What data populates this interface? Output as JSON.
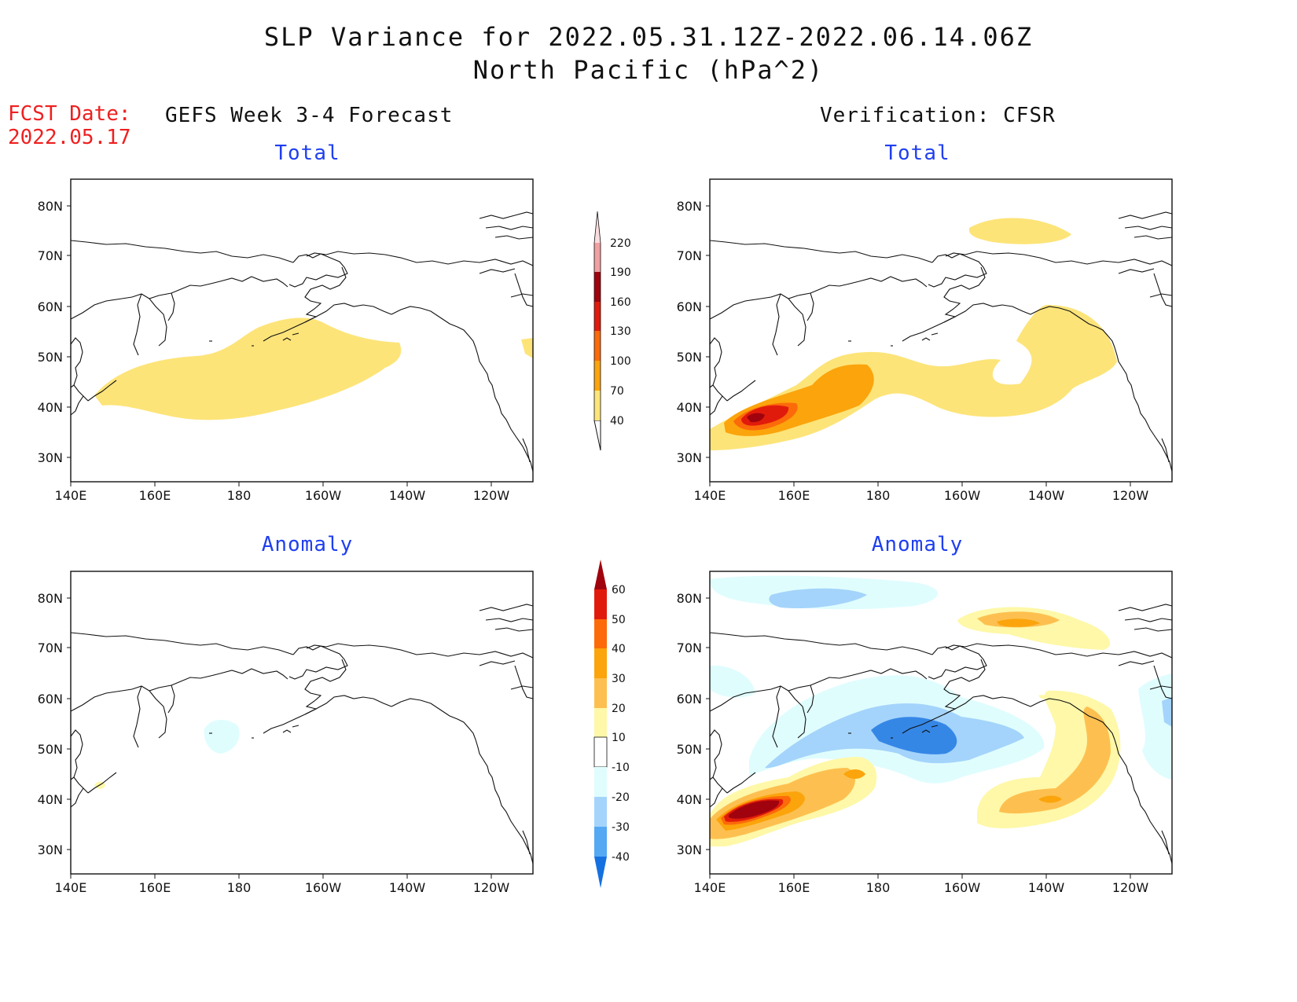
{
  "title": {
    "line1": "SLP Variance for 2022.05.31.12Z-2022.06.14.06Z",
    "line2": "North Pacific (hPa^2)"
  },
  "forecast_date": {
    "label": "FCST Date:",
    "value": "2022.05.17"
  },
  "column_titles": {
    "left": "GEFS Week 3-4 Forecast",
    "right": "Verification: CFSR"
  },
  "panel_labels": {
    "top_left": "Total",
    "top_right": "Total",
    "bottom_left": "Anomaly",
    "bottom_right": "Anomaly"
  },
  "axes": {
    "lat_labels": [
      "80N",
      "70N",
      "60N",
      "50N",
      "40N",
      "30N"
    ],
    "lon_labels": [
      "140E",
      "160E",
      "180",
      "160W",
      "140W",
      "120W"
    ]
  },
  "colorbars": {
    "total": {
      "levels": [
        "40",
        "70",
        "100",
        "130",
        "160",
        "190",
        "220"
      ],
      "colors": [
        "#fde479",
        "#fba40c",
        "#fc6a09",
        "#e11b0c",
        "#a0030d",
        "#f1a0a1",
        "#fbdcdc"
      ]
    },
    "anomaly": {
      "levels": [
        "60",
        "50",
        "40",
        "30",
        "20",
        "10",
        "-10",
        "-20",
        "-30",
        "-40"
      ],
      "colors": [
        "#a0030d",
        "#e11b0c",
        "#fc6a09",
        "#fba40c",
        "#fdc050",
        "#fef8a8",
        "#ffffff",
        "#e0fdfe",
        "#a4d4fb",
        "#55a8f4",
        "#1671e0"
      ]
    }
  }
}
